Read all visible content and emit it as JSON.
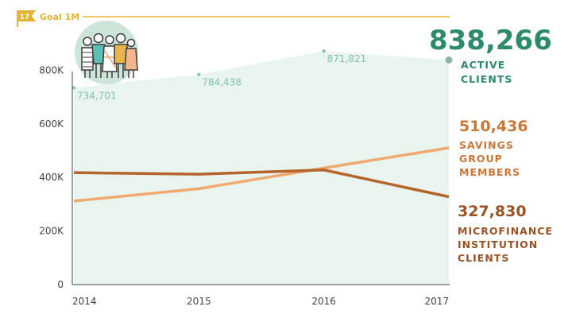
{
  "goal": {
    "badge": "17",
    "label": "Goal 1M",
    "color": "#e3b433"
  },
  "colors": {
    "active": "#2e8b6a",
    "active_label": "#7fc3a5",
    "active_fill": "#e9f4ee",
    "savings": "#f0a96e",
    "savings_text": "#c9773a",
    "mfi": "#b5652c",
    "mfi_text": "#9a5326"
  },
  "chart_data": {
    "type": "line",
    "x": [
      "2014",
      "2015",
      "2016",
      "2017"
    ],
    "ylim": [
      0,
      1000000
    ],
    "yticks": [
      0,
      200000,
      400000,
      600000,
      800000
    ],
    "ytick_labels": [
      "0",
      "200K",
      "400K",
      "600K",
      "800K"
    ],
    "grid": false,
    "series": [
      {
        "key": "active",
        "name": "ACTIVE CLIENTS",
        "values": [
          734701,
          784438,
          871821,
          838266
        ],
        "point_labels": [
          "734,701",
          "784,438",
          "871,821"
        ],
        "style": "area"
      },
      {
        "key": "savings",
        "name": "SAVINGS GROUP MEMBERS",
        "values": [
          312000,
          358000,
          435000,
          510436
        ],
        "style": "line"
      },
      {
        "key": "mfi",
        "name": "MICROFINANCE INSTITUTION CLIENTS",
        "values": [
          418000,
          412000,
          428000,
          327830
        ],
        "style": "line"
      }
    ]
  },
  "callouts": {
    "active": {
      "value": "838,266",
      "lines": [
        "ACTIVE",
        "CLIENTS"
      ]
    },
    "savings": {
      "value": "510,436",
      "lines": [
        "SAVINGS",
        "GROUP",
        "MEMBERS"
      ]
    },
    "mfi": {
      "value": "327,830",
      "lines": [
        "MICROFINANCE",
        "INSTITUTION",
        "CLIENTS"
      ]
    }
  },
  "illustration": {
    "icon": "people-group-icon"
  }
}
